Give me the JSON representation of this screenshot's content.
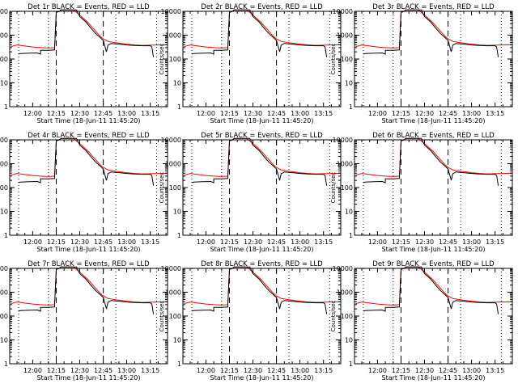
{
  "chart_data": {
    "type": "line",
    "layout": "3x3 grid",
    "y_scale": "log",
    "ylim": [
      1,
      10000
    ],
    "y_ticks": [
      "1",
      "10",
      "100",
      "1000",
      "10000"
    ],
    "ylabel": "Counts/sec",
    "xlabel": "Start Time (18-Jun-11 11:45:20)",
    "x_range": [
      "11:45:20",
      "13:26:00"
    ],
    "x_tick_labels": [
      "12:00",
      "12:15",
      "12:30",
      "12:45",
      "13:00",
      "13:15"
    ],
    "dashed_lines": [
      "12:15",
      "12:45"
    ],
    "dotted_lines": [
      "11:51",
      "12:10",
      "12:53",
      "13:19"
    ],
    "colors": {
      "events": "#000000",
      "lld": "#ff0000",
      "frame": "#000000"
    },
    "panels": [
      {
        "title": "Det 1r BLACK = Events, RED = LLD"
      },
      {
        "title": "Det 2r BLACK = Events, RED = LLD"
      },
      {
        "title": "Det 3r BLACK = Events, RED = LLD"
      },
      {
        "title": "Det 4r BLACK = Events, RED = LLD"
      },
      {
        "title": "Det 5r BLACK = Events, RED = LLD"
      },
      {
        "title": "Det 6r BLACK = Events, RED = LLD"
      },
      {
        "title": "Det 7r BLACK = Events, RED = LLD"
      },
      {
        "title": "Det 8r BLACK = Events, RED = LLD"
      },
      {
        "title": "Det 9r BLACK = Events, RED = LLD"
      }
    ],
    "series": [
      {
        "name": "BLACK = Events",
        "points": [
          [
            "11:51",
            160
          ],
          [
            "11:52",
            170
          ],
          [
            "11:58",
            175
          ],
          [
            "12:03",
            180
          ],
          [
            "12:05",
            160
          ],
          [
            "12:05",
            230
          ],
          [
            "12:10",
            230
          ],
          [
            "12:14",
            240
          ],
          [
            "12:14",
            300
          ],
          [
            "12:15",
            9000
          ],
          [
            "12:17",
            10000
          ],
          [
            "12:18",
            12000
          ],
          [
            "12:28",
            12000
          ],
          [
            "12:30",
            6000
          ],
          [
            "12:34",
            3500
          ],
          [
            "12:37",
            2000
          ],
          [
            "12:40",
            1200
          ],
          [
            "12:43",
            800
          ],
          [
            "12:45",
            600
          ],
          [
            "12:46",
            350
          ],
          [
            "12:47",
            200
          ],
          [
            "12:48",
            380
          ],
          [
            "12:50",
            450
          ],
          [
            "12:55",
            420
          ],
          [
            "13:00",
            390
          ],
          [
            "13:05",
            370
          ],
          [
            "13:10",
            360
          ],
          [
            "13:15",
            360
          ],
          [
            "13:16",
            320
          ],
          [
            "13:17",
            120
          ]
        ]
      },
      {
        "name": "RED = LLD",
        "points": [
          [
            "11:46",
            330
          ],
          [
            "11:50",
            390
          ],
          [
            "11:55",
            350
          ],
          [
            "12:00",
            320
          ],
          [
            "12:05",
            300
          ],
          [
            "12:10",
            290
          ],
          [
            "12:14",
            300
          ],
          [
            "12:15",
            9000
          ],
          [
            "12:17",
            10000
          ],
          [
            "12:18",
            12000
          ],
          [
            "12:26",
            12000
          ],
          [
            "12:30",
            7000
          ],
          [
            "12:35",
            3500
          ],
          [
            "12:40",
            1500
          ],
          [
            "12:43",
            900
          ],
          [
            "12:45",
            700
          ],
          [
            "12:48",
            550
          ],
          [
            "12:53",
            480
          ],
          [
            "13:00",
            420
          ],
          [
            "13:05",
            390
          ],
          [
            "13:10",
            375
          ],
          [
            "13:15",
            380
          ],
          [
            "13:20",
            390
          ],
          [
            "13:26",
            395
          ]
        ]
      }
    ]
  }
}
